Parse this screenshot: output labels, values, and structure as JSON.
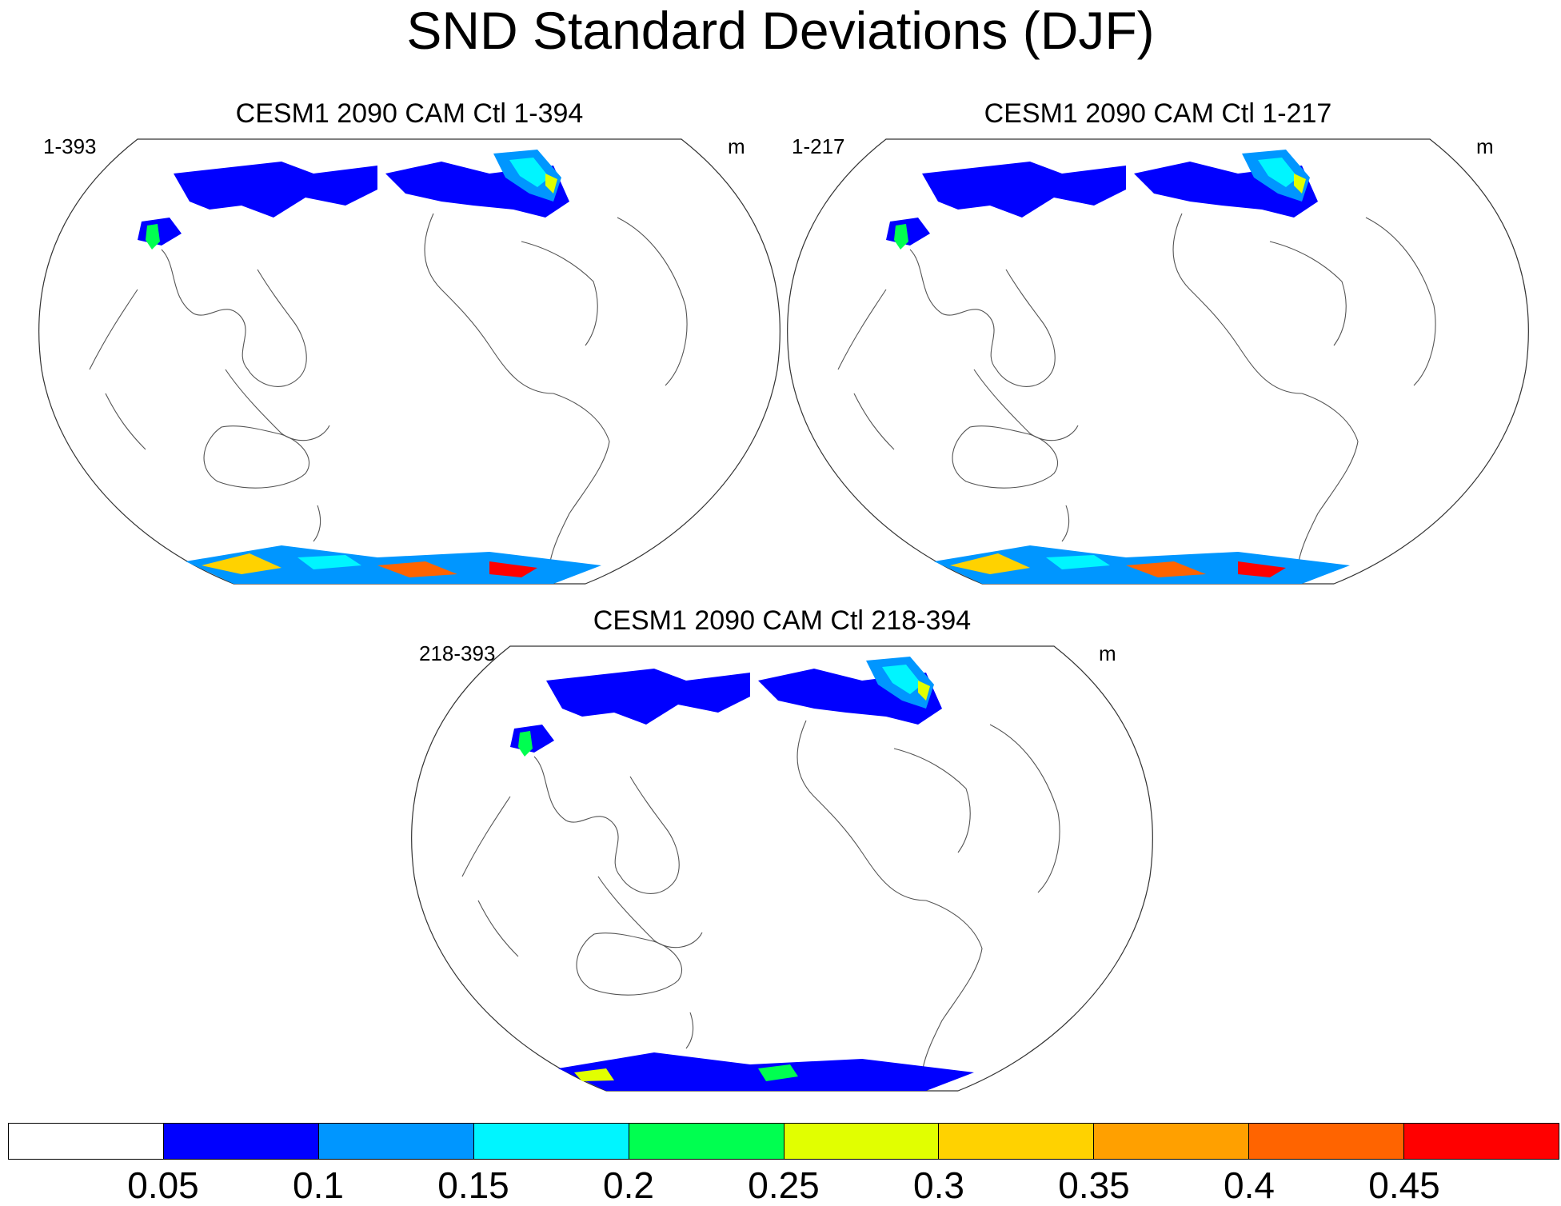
{
  "title": "SND Standard Deviations (DJF)",
  "panels": [
    {
      "title": "CESM1 2090 CAM Ctl 1-394",
      "left_label": "1-393",
      "right_label": "m"
    },
    {
      "title": "CESM1 2090 CAM Ctl 1-217",
      "left_label": "1-217",
      "right_label": "m"
    },
    {
      "title": "CESM1 2090 CAM Ctl 218-394",
      "left_label": "218-393",
      "right_label": "m"
    }
  ],
  "colorbar": {
    "colors": [
      "#ffffff",
      "#0000ff",
      "#0096ff",
      "#00f5ff",
      "#00ff50",
      "#e1ff00",
      "#ffd200",
      "#ffa000",
      "#ff6400",
      "#ff0000"
    ],
    "labels": [
      "0.05",
      "0.1",
      "0.15",
      "0.2",
      "0.25",
      "0.3",
      "0.35",
      "0.4",
      "0.45"
    ]
  }
}
